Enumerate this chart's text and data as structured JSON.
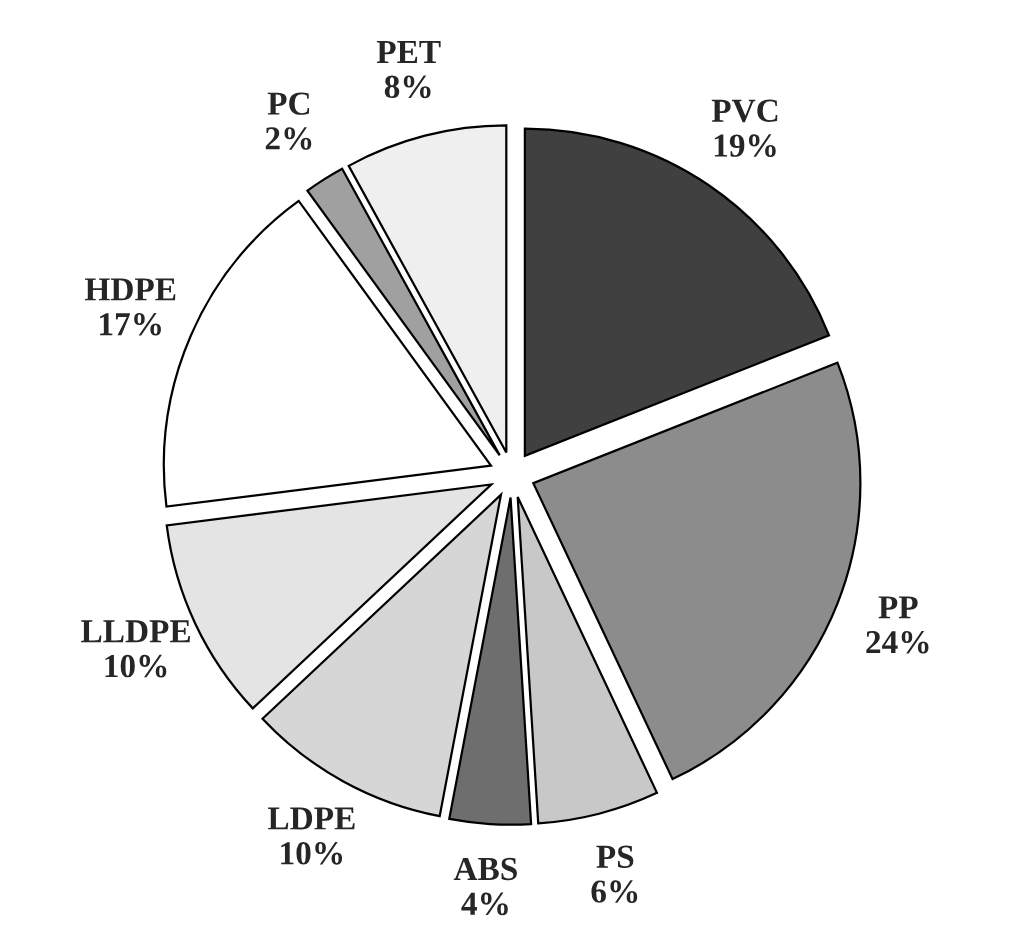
{
  "chart_data": {
    "type": "pie",
    "categories": [
      "PVC",
      "PP",
      "PS",
      "ABS",
      "LDPE",
      "LLDPE",
      "HDPE",
      "PC",
      "PET"
    ],
    "values": [
      19,
      24,
      6,
      4,
      10,
      10,
      17,
      2,
      8
    ],
    "colors": [
      "#404040",
      "#8c8c8c",
      "#c8c8c8",
      "#6e6e6e",
      "#d6d6d6",
      "#e4e4e4",
      "#ffffff",
      "#a0a0a0",
      "#efefef"
    ],
    "value_labels": [
      "19%",
      "24%",
      "6%",
      "4%",
      "10%",
      "10%",
      "17%",
      "2%",
      "8%"
    ]
  }
}
